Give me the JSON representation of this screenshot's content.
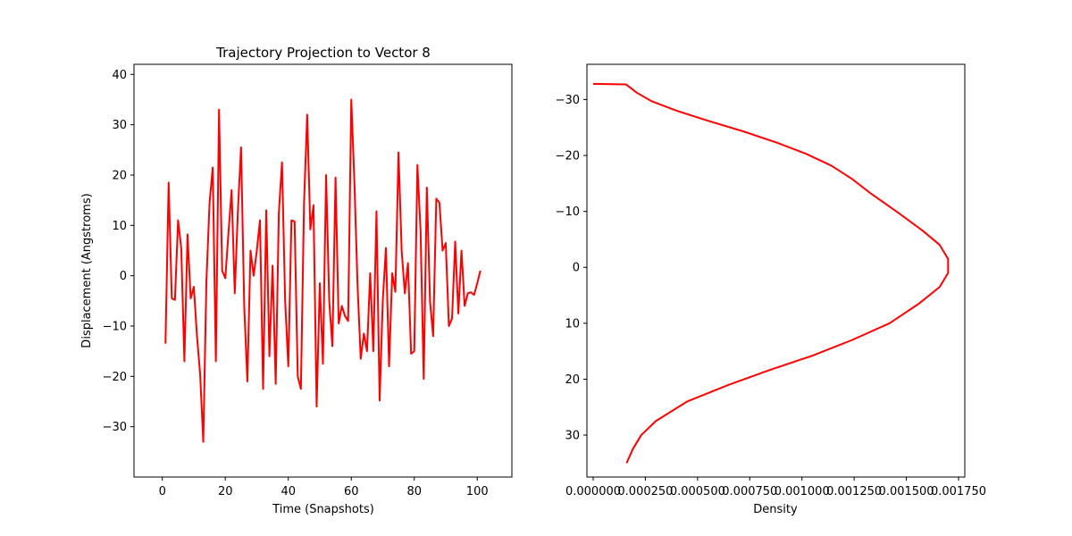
{
  "chart_data": [
    {
      "type": "line",
      "title": "Trajectory Projection to Vector 8",
      "xlabel": "Time (Snapshots)",
      "ylabel": "Displacement (Angstroms)",
      "xlim": [
        -9,
        111
      ],
      "ylim": [
        -40,
        42
      ],
      "xticks": [
        0,
        20,
        40,
        60,
        80,
        100
      ],
      "yticks": [
        -30,
        -20,
        -10,
        0,
        10,
        20,
        30,
        40
      ],
      "grid": false,
      "line_color": "#ff0000",
      "series": [
        {
          "x": [
            1,
            2,
            3,
            4,
            5,
            6,
            7,
            8,
            9,
            10,
            11,
            12,
            13,
            14,
            15,
            16,
            17,
            18,
            19,
            20,
            21,
            22,
            23,
            24,
            25,
            26,
            27,
            28,
            29,
            30,
            31,
            32,
            33,
            34,
            35,
            36,
            37,
            38,
            39,
            40,
            41,
            42,
            43,
            44,
            45,
            46,
            47,
            48,
            49,
            50,
            51,
            52,
            53,
            54,
            55,
            56,
            57,
            58,
            59,
            60,
            61,
            62,
            63,
            64,
            65,
            66,
            67,
            68,
            69,
            70,
            71,
            72,
            73,
            74,
            75,
            76,
            77,
            78,
            79,
            80,
            81,
            82,
            83,
            84,
            85,
            86,
            87,
            88,
            89,
            90,
            91,
            92,
            93,
            94,
            95,
            96,
            97,
            98,
            99,
            100,
            101
          ],
          "values": [
            -13.5,
            18.5,
            -4.5,
            -4.8,
            11,
            5.5,
            -17,
            8.2,
            -4.5,
            -2.2,
            -12,
            -19.5,
            -33,
            -1,
            14.5,
            21.5,
            -17,
            33,
            1,
            -0.5,
            8.5,
            17,
            -3.5,
            13,
            25.5,
            -6,
            -21,
            5,
            0,
            5,
            11,
            -22.5,
            13,
            -16,
            2,
            -21.5,
            12.5,
            22.5,
            -5,
            -18,
            11,
            10.8,
            -20,
            -22.5,
            14.5,
            32,
            9.2,
            14,
            -26,
            -1.5,
            -17.5,
            20,
            -5,
            -14,
            19.5,
            -9.5,
            -6,
            -8,
            -9,
            35,
            18.5,
            -2,
            -16.5,
            -11.5,
            -15,
            0.5,
            -15,
            12.8,
            -24.8,
            -5,
            5.5,
            -18,
            0.5,
            -3.2,
            24.5,
            5,
            -3.5,
            2.5,
            -15.5,
            -15,
            22,
            9,
            -20.5,
            17.5,
            -5,
            -12,
            15.3,
            14.5,
            5,
            6.5,
            -10,
            -8.5,
            6.8,
            -7.5,
            5,
            -6,
            -3.5,
            -3.3,
            -3.8,
            -1.5,
            1
          ]
        }
      ]
    },
    {
      "type": "line",
      "title": "",
      "xlabel": "Density",
      "ylabel": "",
      "xlim": [
        -3e-05,
        0.00178
      ],
      "ylim": [
        -36.3,
        37.5
      ],
      "y_inverted": true,
      "xticks": [
        0.0,
        0.00025,
        0.0005,
        0.00075,
        0.001,
        0.00125,
        0.0015,
        0.00175
      ],
      "xtick_labels": [
        "0.000000",
        "0.000250",
        "0.000500",
        "0.000750",
        "0.001000",
        "0.001250",
        "0.001500",
        "0.001750"
      ],
      "yticks": [
        -30,
        -20,
        -10,
        0,
        10,
        20,
        30
      ],
      "grid": false,
      "line_color": "#ff0000",
      "series": [
        {
          "x": [
            0.0,
            0.000158,
            0.000175,
            0.00021,
            0.00028,
            0.0004,
            0.00055,
            0.00072,
            0.00088,
            0.00102,
            0.00114,
            0.00124,
            0.00133,
            0.00146,
            0.00158,
            0.00166,
            0.0017,
            0.0017,
            0.00166,
            0.00156,
            0.00142,
            0.00124,
            0.00105,
            0.00085,
            0.00065,
            0.00045,
            0.0003,
            0.00023,
            0.00019,
            0.00016
          ],
          "y": [
            -32.8,
            -32.7,
            -32.2,
            -31.2,
            -29.7,
            -28,
            -26.2,
            -24.3,
            -22.3,
            -20.3,
            -18.2,
            -15.8,
            -13.2,
            -9.8,
            -6.5,
            -4,
            -1.5,
            1,
            3.5,
            6.5,
            10,
            13,
            15.8,
            18.3,
            21,
            24,
            27.5,
            30,
            32.5,
            35
          ]
        }
      ]
    }
  ]
}
